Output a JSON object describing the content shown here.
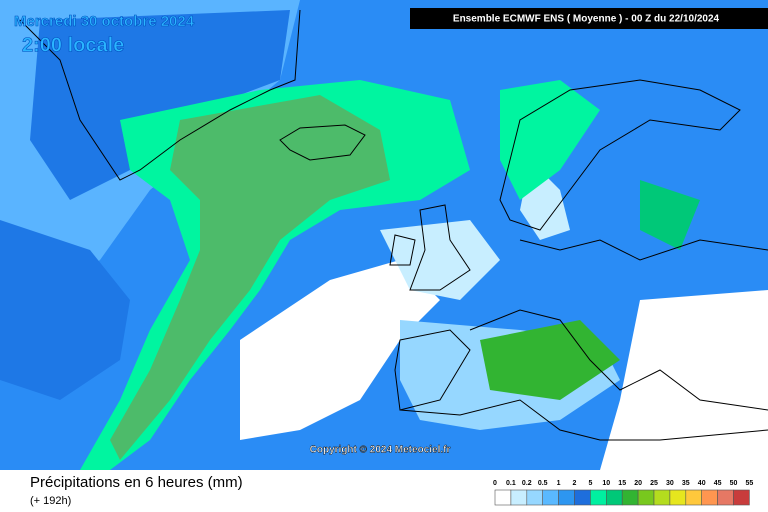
{
  "header": {
    "date": "Mercredi 30 octobre 2024",
    "time": "2:00 locale",
    "model": "Ensemble ECMWF ENS  ( Moyenne )  -  00 Z du 22/10/2024"
  },
  "copyright": "Copyright © 2024 Meteociel.fr",
  "footer": {
    "title": "Précipitations en 6 heures (mm)",
    "lead": "(+ 192h)"
  },
  "legend": {
    "labels": [
      0,
      0.1,
      0.2,
      0.5,
      1,
      2,
      5,
      10,
      15,
      20,
      25,
      30,
      35,
      40,
      45,
      50,
      55
    ],
    "colors": [
      "#ffffff",
      "#c8eeff",
      "#96d7ff",
      "#5ab9ff",
      "#2d96f0",
      "#1e6edc",
      "#00f0a0",
      "#00c878",
      "#32b432",
      "#78c81e",
      "#b4dc1e",
      "#e6e61e",
      "#ffc83c",
      "#ff9650",
      "#e67864",
      "#c83c3c"
    ]
  }
}
